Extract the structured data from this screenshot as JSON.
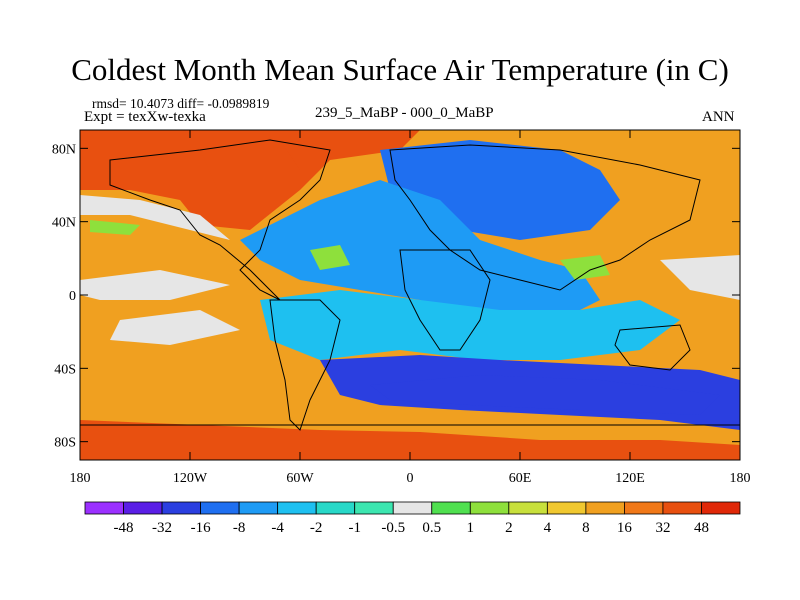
{
  "title": "Coldest Month Mean Surface Air Temperature (in C)",
  "stats": "rmsd= 10.4073 diff= -0.0989819",
  "experiment": "Expt = texXw-texka",
  "experiment_label": "239_5_MaBP - 000_0_MaBP",
  "season": "ANN",
  "axes": {
    "lat_ticks": [
      "80N",
      "40N",
      "0",
      "40S",
      "80S"
    ],
    "lat_values": [
      80,
      40,
      0,
      -40,
      -80
    ],
    "lon_ticks": [
      "180",
      "120W",
      "60W",
      "0",
      "60E",
      "120E",
      "180"
    ],
    "lon_values": [
      -180,
      -120,
      -60,
      0,
      60,
      120,
      180
    ],
    "lat_range": [
      -90,
      90
    ],
    "lon_range": [
      -180,
      180
    ]
  },
  "colorbar": {
    "labels": [
      "-48",
      "-32",
      "-16",
      "-8",
      "-4",
      "-2",
      "-1",
      "-0.5",
      "0.5",
      "1",
      "2",
      "4",
      "8",
      "16",
      "32",
      "48"
    ],
    "colors": [
      "#9b30ff",
      "#5a1ee6",
      "#2b3fe0",
      "#1f6ff0",
      "#1e9bf5",
      "#1ec0f0",
      "#28d8c8",
      "#3ce6b0",
      "#e6e6e6",
      "#50e050",
      "#8ee03c",
      "#c8e03c",
      "#f0c830",
      "#f0a020",
      "#f07818",
      "#e85010",
      "#e02808"
    ]
  },
  "field_regions": [
    {
      "name": "background",
      "color": "#f0a020"
    },
    {
      "name": "siberia-warm",
      "color": "#e85010"
    },
    {
      "name": "north-atlantic-cold",
      "color": "#1f6ff0"
    },
    {
      "name": "eurasia-cold",
      "color": "#1e9bf5"
    },
    {
      "name": "southern-ocean-cold",
      "color": "#2b3fe0"
    },
    {
      "name": "tropical-cool",
      "color": "#1ec0f0"
    },
    {
      "name": "neutral-bands",
      "color": "#e6e6e6"
    },
    {
      "name": "green-patches",
      "color": "#8ee03c"
    }
  ]
}
